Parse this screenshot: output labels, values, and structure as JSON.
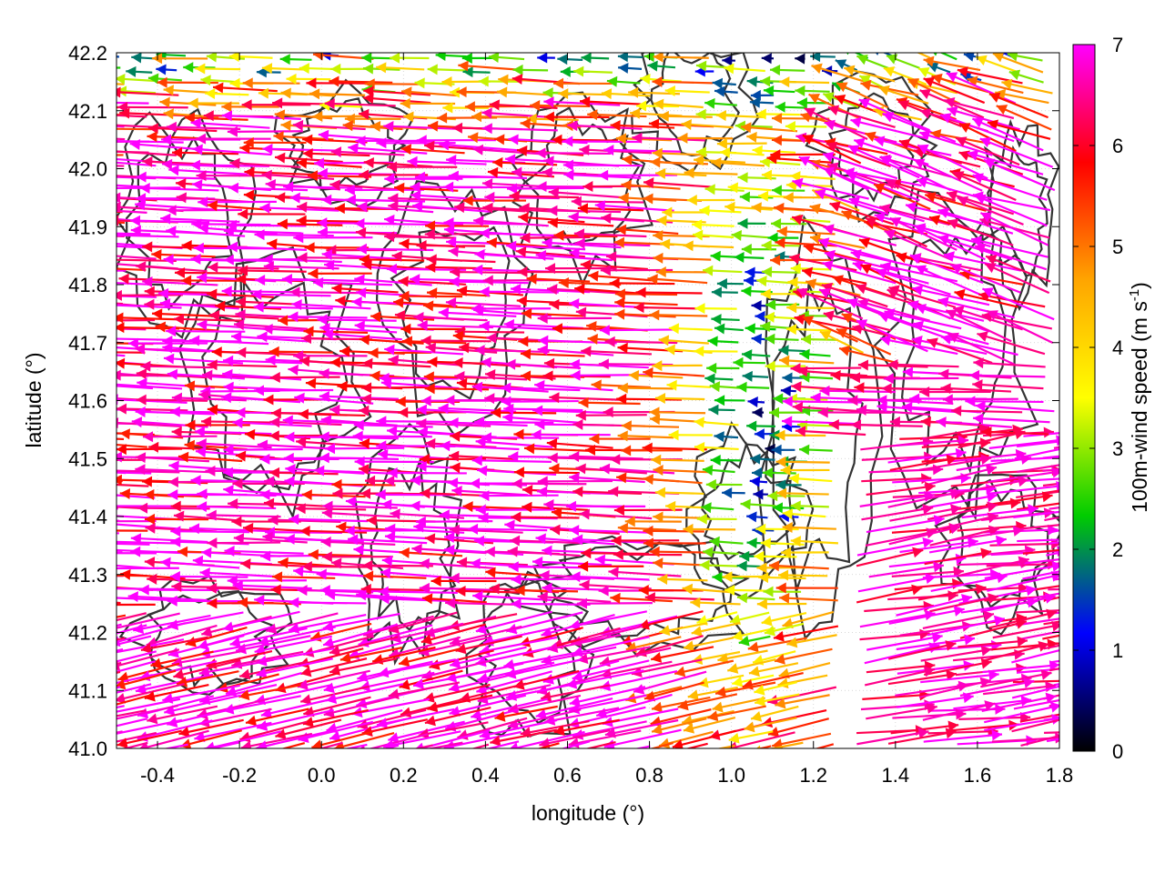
{
  "chart_data": {
    "type": "quiver",
    "xlabel": "longitude (°)",
    "ylabel": "latitude (°)",
    "xlim": [
      -0.5,
      1.8
    ],
    "ylim": [
      41.0,
      42.2
    ],
    "x_ticks": [
      "-0.4",
      "-0.2",
      "0.0",
      "0.2",
      "0.4",
      "0.6",
      "0.8",
      "1.0",
      "1.2",
      "1.4",
      "1.6",
      "1.8"
    ],
    "y_ticks": [
      "41.0",
      "41.1",
      "41.2",
      "41.3",
      "41.4",
      "41.5",
      "41.6",
      "41.7",
      "41.8",
      "41.9",
      "42.0",
      "42.1",
      "42.2"
    ],
    "grid": true,
    "colorbar": {
      "label": "100m-wind speed (m s",
      "label_superscript": "-1",
      "label_tail": ")",
      "range": [
        0,
        7
      ],
      "ticks": [
        "0",
        "1",
        "2",
        "3",
        "4",
        "5",
        "6",
        "7"
      ],
      "colors": [
        "#000000",
        "#0000ff",
        "#00cc00",
        "#ffff00",
        "#ffa500",
        "#ff0000",
        "#ff00ff"
      ]
    },
    "wind_field_description_units": "m/s",
    "contour_color": "#333333"
  }
}
